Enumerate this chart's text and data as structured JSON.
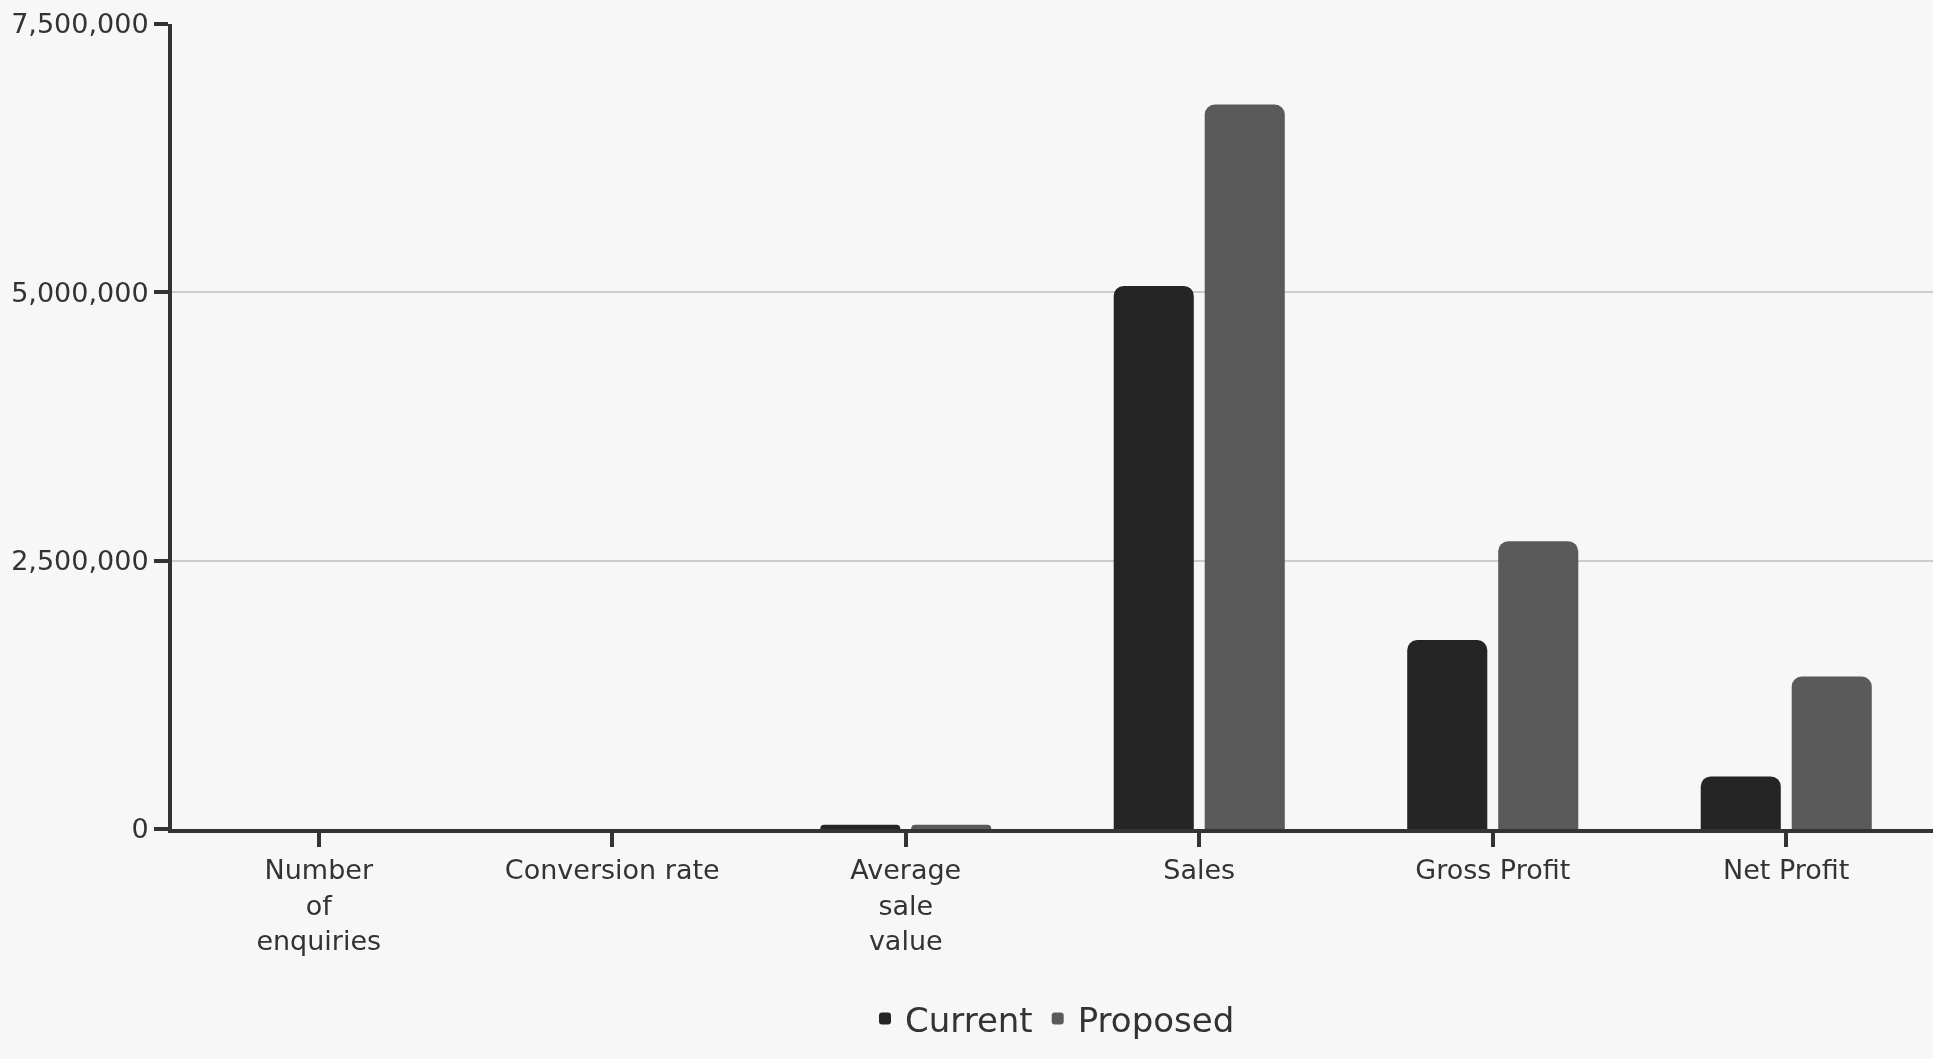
{
  "chart_data": {
    "type": "bar",
    "categories": [
      "Number\nof\nenquiries",
      "Conversion rate",
      "Average\nsale\nvalue",
      "Sales",
      "Gross Profit",
      "Net Profit"
    ],
    "series": [
      {
        "name": "Current",
        "color": "#252525",
        "values": [
          0,
          0,
          40000,
          5060000,
          1760000,
          490000
        ]
      },
      {
        "name": "Proposed",
        "color": "#5a5a5a",
        "values": [
          0,
          0,
          40000,
          6750000,
          2680000,
          1420000
        ]
      }
    ],
    "ylim": [
      0,
      7500000
    ],
    "yticks": [
      {
        "value": 0,
        "label": "0"
      },
      {
        "value": 2500000,
        "label": "2,500,000"
      },
      {
        "value": 5000000,
        "label": "5,000,000"
      },
      {
        "value": 7500000,
        "label": "7,500,000"
      }
    ],
    "grid": "y",
    "legend": "bottom"
  }
}
